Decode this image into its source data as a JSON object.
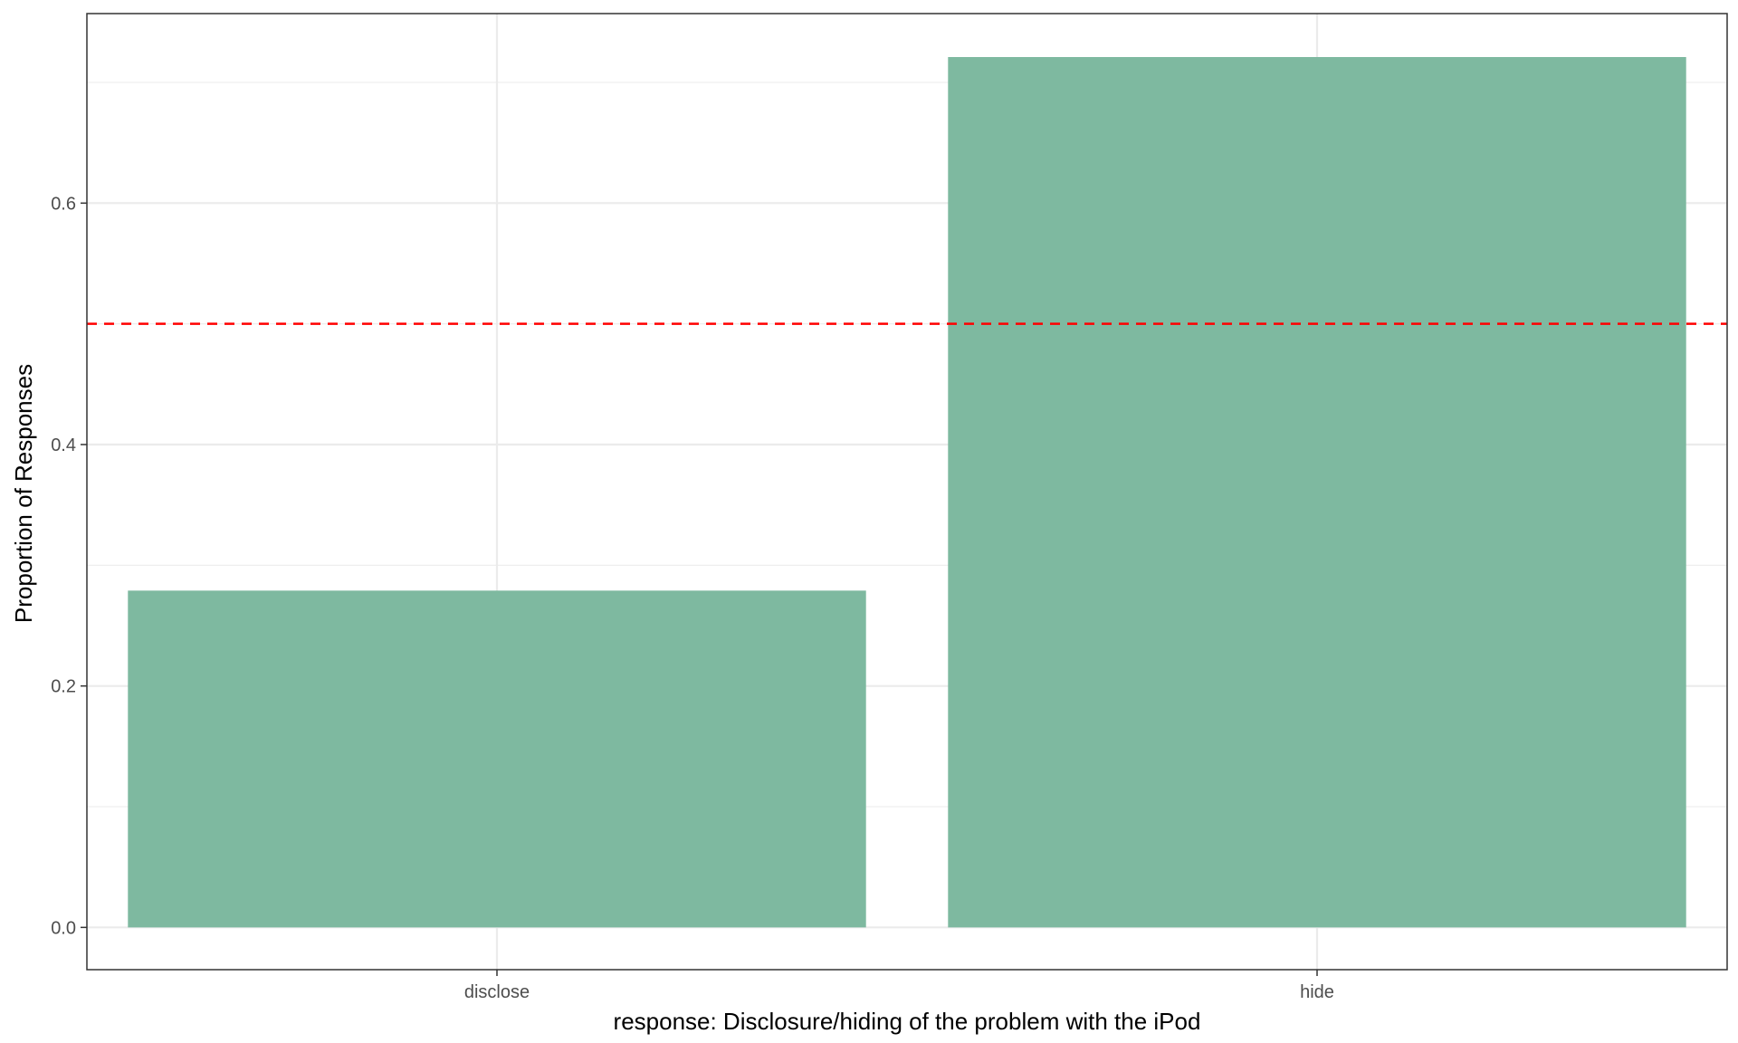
{
  "chart_data": {
    "type": "bar",
    "title": "",
    "xlabel": "response: Disclosure/hiding of the problem with the iPod",
    "ylabel": "Proportion of Responses",
    "categories": [
      "disclose",
      "hide"
    ],
    "values": [
      0.279,
      0.721
    ],
    "ylim": [
      -0.035,
      0.757
    ],
    "yticks": [
      "0.0",
      "0.2",
      "0.4",
      "0.6"
    ],
    "ytick_values": [
      0.0,
      0.2,
      0.4,
      0.6
    ],
    "y_minor_ticks": [
      0.1,
      0.3,
      0.5,
      0.7
    ],
    "reference_line": {
      "y": 0.5,
      "style": "dashed"
    },
    "grid": true,
    "legend": "none",
    "colors": {
      "bar": "#7eb9a0",
      "reference_line": "#ff0000",
      "panel_border": "#333333",
      "grid": "#ebebeb"
    }
  }
}
